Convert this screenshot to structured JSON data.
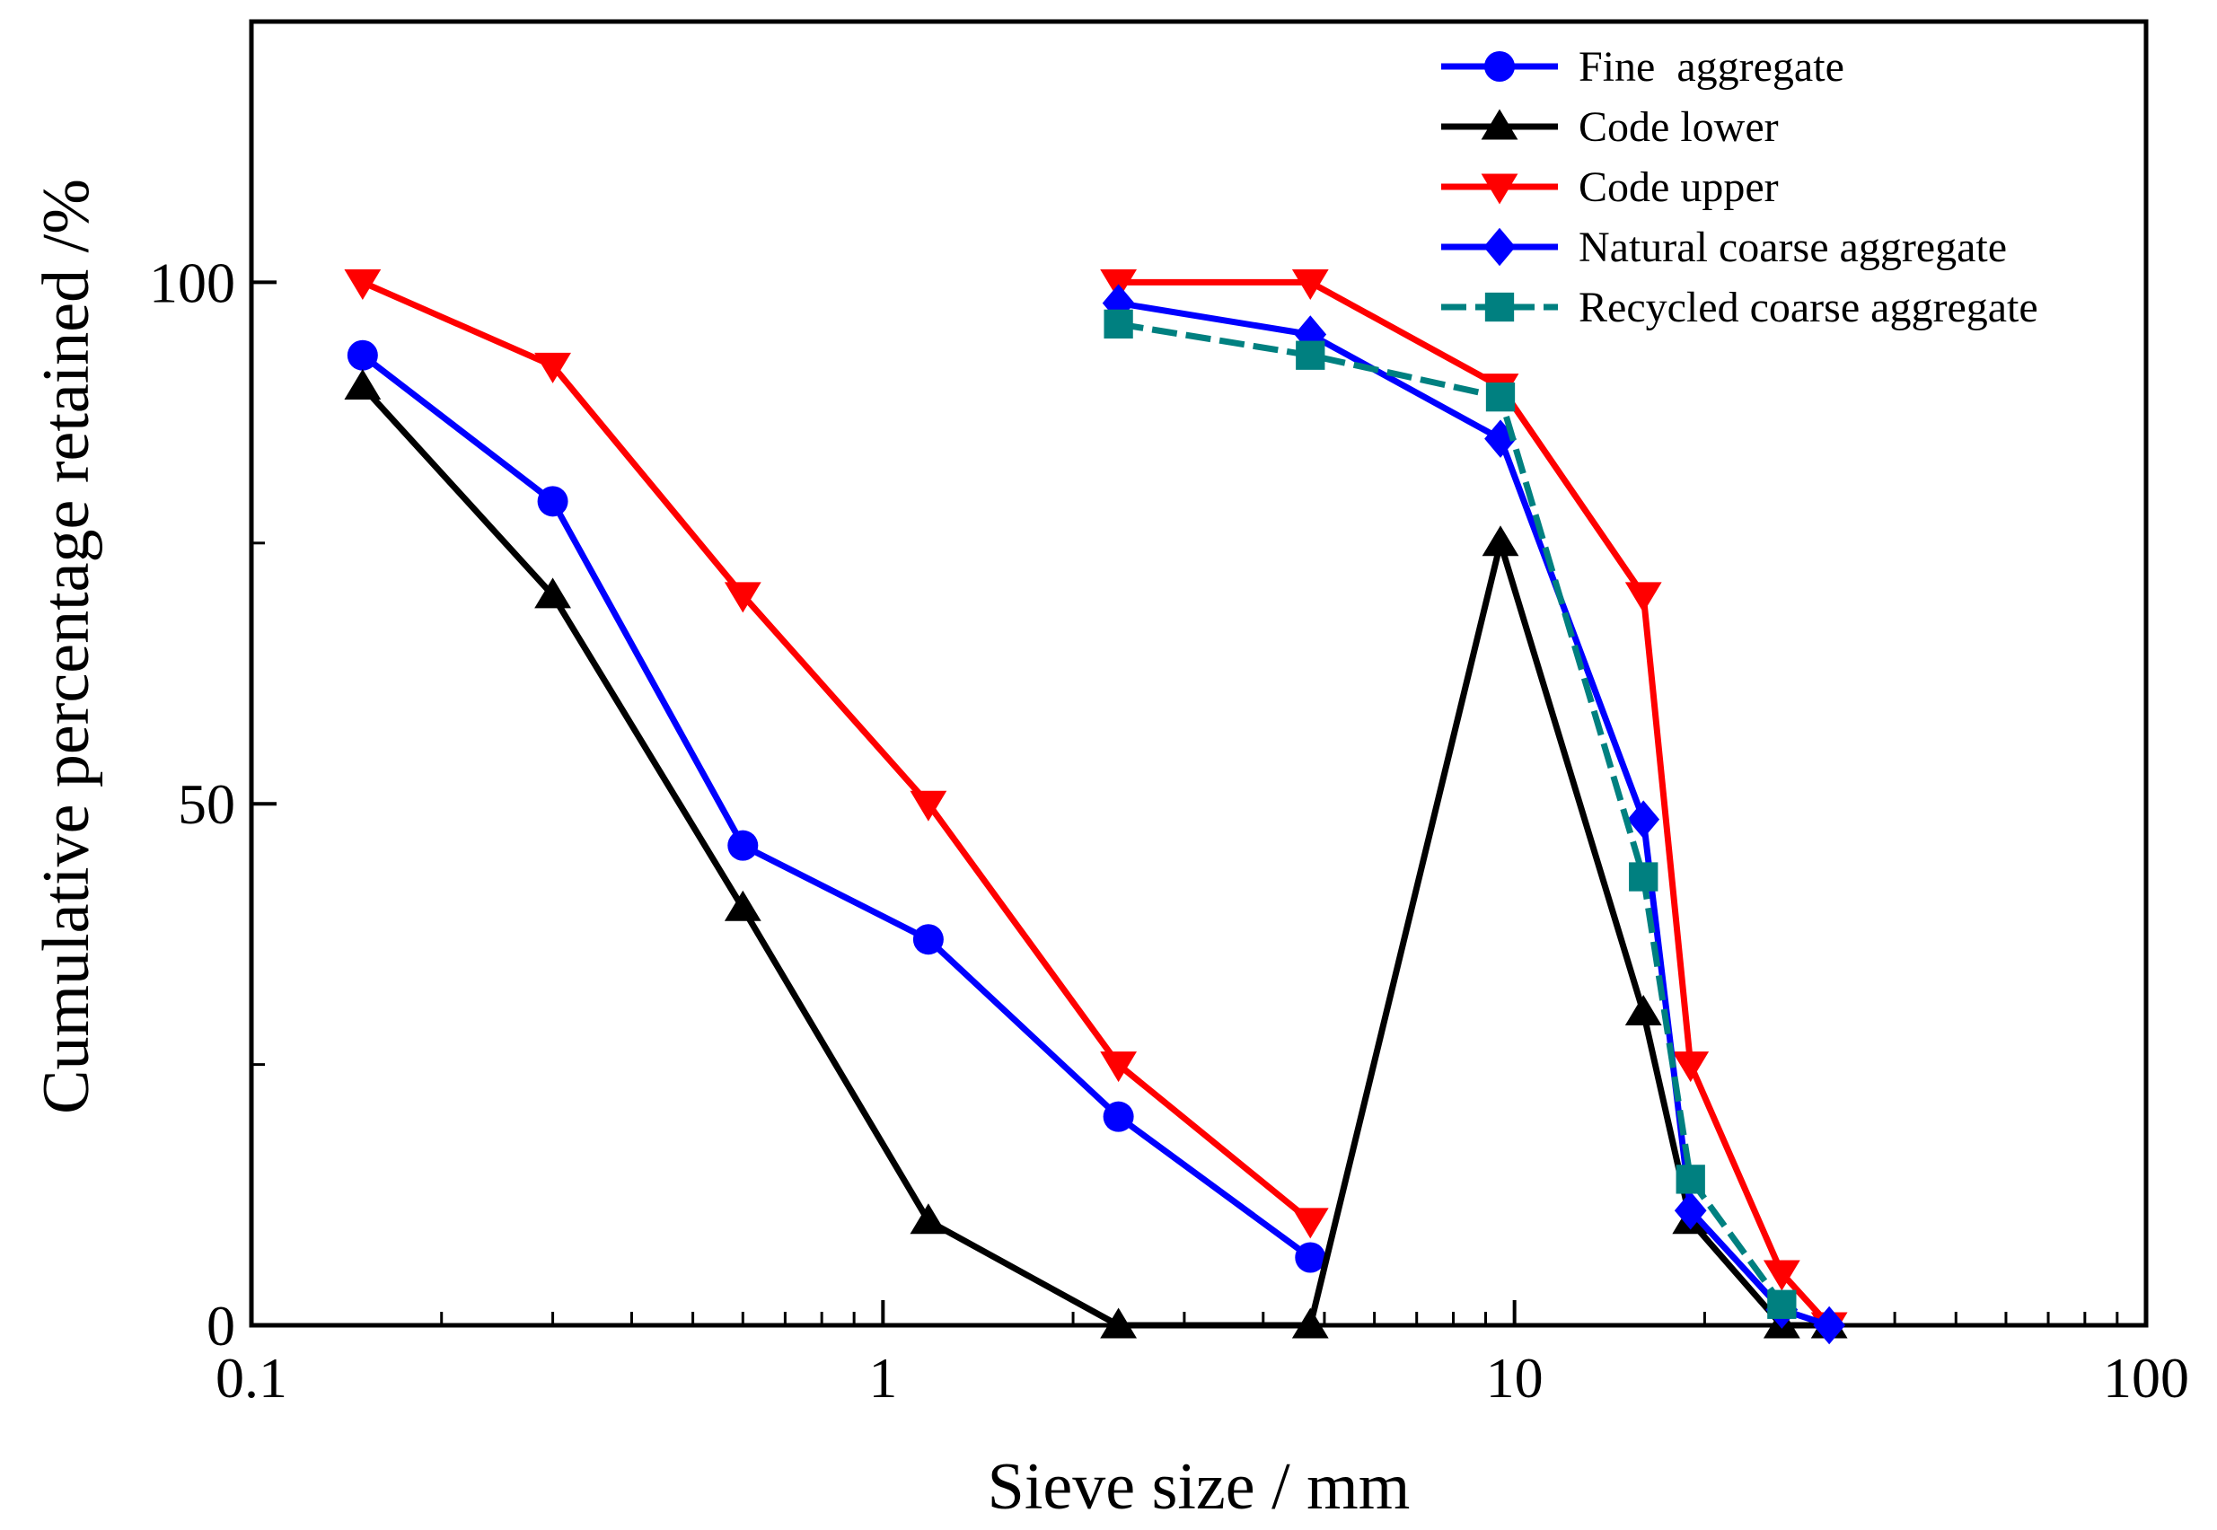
{
  "chart_data": {
    "type": "line",
    "title": "",
    "xlabel": "Sieve size / mm",
    "ylabel": "Cumulative percentage retained /%",
    "xscale": "log",
    "xlim": [
      0.1,
      100
    ],
    "ylim": [
      0,
      125
    ],
    "x_ticks": [
      0.1,
      1,
      10,
      100
    ],
    "x_tick_labels": [
      "0.1",
      "1",
      "10",
      "100"
    ],
    "y_ticks": [
      0,
      50,
      100
    ],
    "y_tick_labels": [
      "0",
      "50",
      "100"
    ],
    "y_minor_ticks": [
      25,
      75
    ],
    "grid": false,
    "legend_position": "top-right",
    "series": [
      {
        "name": "Fine  aggregate",
        "color": "#0000ff",
        "marker": "circle",
        "dash": "solid",
        "x": [
          0.15,
          0.3,
          0.6,
          1.18,
          2.36,
          4.75
        ],
        "y": [
          93,
          79,
          46,
          37,
          20,
          6.5
        ]
      },
      {
        "name": "Code lower",
        "color": "#000000",
        "marker": "triangle-up",
        "dash": "solid",
        "x": [
          0.15,
          0.3,
          0.6,
          1.18,
          2.36,
          4.75,
          9.5,
          16,
          19,
          26.5,
          31.5
        ],
        "y": [
          90,
          70,
          40,
          10,
          0,
          0,
          75,
          30,
          10,
          0,
          0
        ]
      },
      {
        "name": "Code upper",
        "color": "#ff0000",
        "marker": "triangle-down",
        "dash": "solid",
        "x": [
          0.15,
          0.3,
          0.6,
          1.18,
          2.36,
          4.75,
          2.36,
          4.75,
          9.5,
          16,
          19,
          26.5,
          31.5
        ],
        "y": [
          100,
          92,
          70,
          50,
          25,
          10,
          100,
          100,
          90,
          70,
          25,
          5,
          0
        ]
      },
      {
        "name": "Natural coarse aggregate",
        "color": "#0000ff",
        "marker": "diamond",
        "dash": "solid",
        "x": [
          2.36,
          4.75,
          9.5,
          16,
          19,
          26.5,
          31.5
        ],
        "y": [
          98,
          95,
          85,
          48.5,
          11,
          1.5,
          0
        ]
      },
      {
        "name": "Recycled coarse aggregate",
        "color": "#008080",
        "marker": "square",
        "dash": "dashed",
        "x": [
          2.36,
          4.75,
          9.5,
          16,
          19,
          26.5
        ],
        "y": [
          96,
          93,
          89,
          43,
          14,
          2
        ]
      }
    ]
  }
}
